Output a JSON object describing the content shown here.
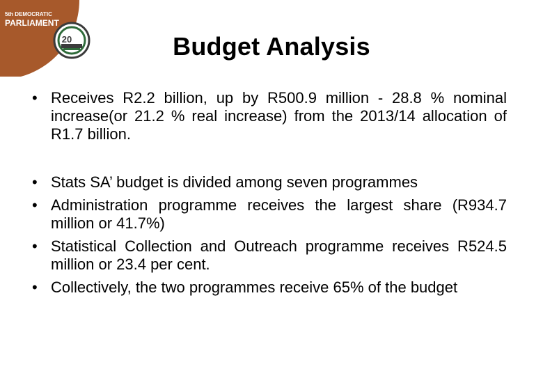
{
  "logo": {
    "line1": "5th DEMOCRATIC",
    "line2": "PARLIAMENT",
    "badge": "20",
    "colors": {
      "brown": "#a7592b",
      "green": "#2f6b3a",
      "dark": "#3b3b3b"
    }
  },
  "slide": {
    "title": "Budget Analysis",
    "bullet_glyph": "•",
    "bullets": [
      "Receives R2.2 billion, up by R500.9 million - 28.8 % nominal increase(or 21.2 % real increase) from the 2013/14 allocation of R1.7 billion.",
      "Stats SA’ budget is divided among seven programmes",
      "Administration programme receives the largest share (R934.7 million or 41.7%)",
      "Statistical Collection and Outreach programme receives R524.5 million or 23.4 per cent.",
      "Collectively, the two programmes receive 65% of the budget"
    ]
  }
}
